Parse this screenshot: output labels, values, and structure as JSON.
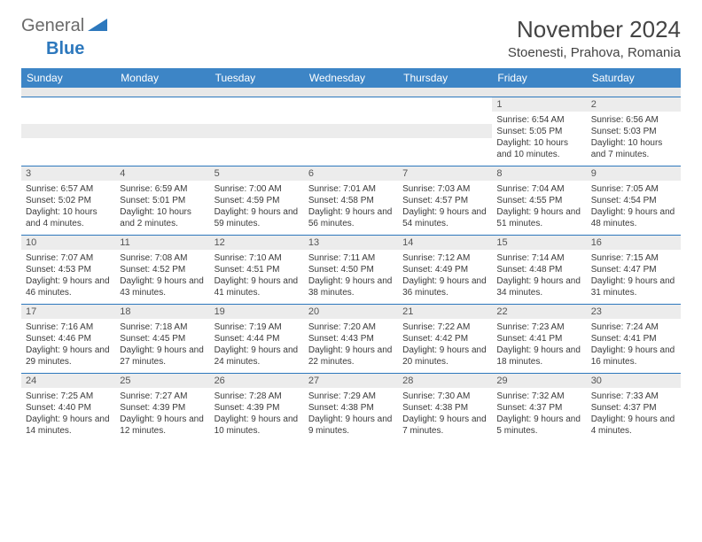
{
  "logo": {
    "general": "General",
    "blue": "Blue"
  },
  "title": "November 2024",
  "location": "Stoenesti, Prahova, Romania",
  "colors": {
    "header_bg": "#3d85c6",
    "header_text": "#ffffff",
    "border": "#2d78bd",
    "daynum_bg": "#ececec",
    "text": "#3a3a3a",
    "logo_gray": "#6a6a6a",
    "logo_blue": "#2d78bd"
  },
  "day_headers": [
    "Sunday",
    "Monday",
    "Tuesday",
    "Wednesday",
    "Thursday",
    "Friday",
    "Saturday"
  ],
  "weeks": [
    [
      null,
      null,
      null,
      null,
      null,
      {
        "n": "1",
        "sr": "Sunrise: 6:54 AM",
        "ss": "Sunset: 5:05 PM",
        "dl": "Daylight: 10 hours and 10 minutes."
      },
      {
        "n": "2",
        "sr": "Sunrise: 6:56 AM",
        "ss": "Sunset: 5:03 PM",
        "dl": "Daylight: 10 hours and 7 minutes."
      }
    ],
    [
      {
        "n": "3",
        "sr": "Sunrise: 6:57 AM",
        "ss": "Sunset: 5:02 PM",
        "dl": "Daylight: 10 hours and 4 minutes."
      },
      {
        "n": "4",
        "sr": "Sunrise: 6:59 AM",
        "ss": "Sunset: 5:01 PM",
        "dl": "Daylight: 10 hours and 2 minutes."
      },
      {
        "n": "5",
        "sr": "Sunrise: 7:00 AM",
        "ss": "Sunset: 4:59 PM",
        "dl": "Daylight: 9 hours and 59 minutes."
      },
      {
        "n": "6",
        "sr": "Sunrise: 7:01 AM",
        "ss": "Sunset: 4:58 PM",
        "dl": "Daylight: 9 hours and 56 minutes."
      },
      {
        "n": "7",
        "sr": "Sunrise: 7:03 AM",
        "ss": "Sunset: 4:57 PM",
        "dl": "Daylight: 9 hours and 54 minutes."
      },
      {
        "n": "8",
        "sr": "Sunrise: 7:04 AM",
        "ss": "Sunset: 4:55 PM",
        "dl": "Daylight: 9 hours and 51 minutes."
      },
      {
        "n": "9",
        "sr": "Sunrise: 7:05 AM",
        "ss": "Sunset: 4:54 PM",
        "dl": "Daylight: 9 hours and 48 minutes."
      }
    ],
    [
      {
        "n": "10",
        "sr": "Sunrise: 7:07 AM",
        "ss": "Sunset: 4:53 PM",
        "dl": "Daylight: 9 hours and 46 minutes."
      },
      {
        "n": "11",
        "sr": "Sunrise: 7:08 AM",
        "ss": "Sunset: 4:52 PM",
        "dl": "Daylight: 9 hours and 43 minutes."
      },
      {
        "n": "12",
        "sr": "Sunrise: 7:10 AM",
        "ss": "Sunset: 4:51 PM",
        "dl": "Daylight: 9 hours and 41 minutes."
      },
      {
        "n": "13",
        "sr": "Sunrise: 7:11 AM",
        "ss": "Sunset: 4:50 PM",
        "dl": "Daylight: 9 hours and 38 minutes."
      },
      {
        "n": "14",
        "sr": "Sunrise: 7:12 AM",
        "ss": "Sunset: 4:49 PM",
        "dl": "Daylight: 9 hours and 36 minutes."
      },
      {
        "n": "15",
        "sr": "Sunrise: 7:14 AM",
        "ss": "Sunset: 4:48 PM",
        "dl": "Daylight: 9 hours and 34 minutes."
      },
      {
        "n": "16",
        "sr": "Sunrise: 7:15 AM",
        "ss": "Sunset: 4:47 PM",
        "dl": "Daylight: 9 hours and 31 minutes."
      }
    ],
    [
      {
        "n": "17",
        "sr": "Sunrise: 7:16 AM",
        "ss": "Sunset: 4:46 PM",
        "dl": "Daylight: 9 hours and 29 minutes."
      },
      {
        "n": "18",
        "sr": "Sunrise: 7:18 AM",
        "ss": "Sunset: 4:45 PM",
        "dl": "Daylight: 9 hours and 27 minutes."
      },
      {
        "n": "19",
        "sr": "Sunrise: 7:19 AM",
        "ss": "Sunset: 4:44 PM",
        "dl": "Daylight: 9 hours and 24 minutes."
      },
      {
        "n": "20",
        "sr": "Sunrise: 7:20 AM",
        "ss": "Sunset: 4:43 PM",
        "dl": "Daylight: 9 hours and 22 minutes."
      },
      {
        "n": "21",
        "sr": "Sunrise: 7:22 AM",
        "ss": "Sunset: 4:42 PM",
        "dl": "Daylight: 9 hours and 20 minutes."
      },
      {
        "n": "22",
        "sr": "Sunrise: 7:23 AM",
        "ss": "Sunset: 4:41 PM",
        "dl": "Daylight: 9 hours and 18 minutes."
      },
      {
        "n": "23",
        "sr": "Sunrise: 7:24 AM",
        "ss": "Sunset: 4:41 PM",
        "dl": "Daylight: 9 hours and 16 minutes."
      }
    ],
    [
      {
        "n": "24",
        "sr": "Sunrise: 7:25 AM",
        "ss": "Sunset: 4:40 PM",
        "dl": "Daylight: 9 hours and 14 minutes."
      },
      {
        "n": "25",
        "sr": "Sunrise: 7:27 AM",
        "ss": "Sunset: 4:39 PM",
        "dl": "Daylight: 9 hours and 12 minutes."
      },
      {
        "n": "26",
        "sr": "Sunrise: 7:28 AM",
        "ss": "Sunset: 4:39 PM",
        "dl": "Daylight: 9 hours and 10 minutes."
      },
      {
        "n": "27",
        "sr": "Sunrise: 7:29 AM",
        "ss": "Sunset: 4:38 PM",
        "dl": "Daylight: 9 hours and 9 minutes."
      },
      {
        "n": "28",
        "sr": "Sunrise: 7:30 AM",
        "ss": "Sunset: 4:38 PM",
        "dl": "Daylight: 9 hours and 7 minutes."
      },
      {
        "n": "29",
        "sr": "Sunrise: 7:32 AM",
        "ss": "Sunset: 4:37 PM",
        "dl": "Daylight: 9 hours and 5 minutes."
      },
      {
        "n": "30",
        "sr": "Sunrise: 7:33 AM",
        "ss": "Sunset: 4:37 PM",
        "dl": "Daylight: 9 hours and 4 minutes."
      }
    ]
  ]
}
